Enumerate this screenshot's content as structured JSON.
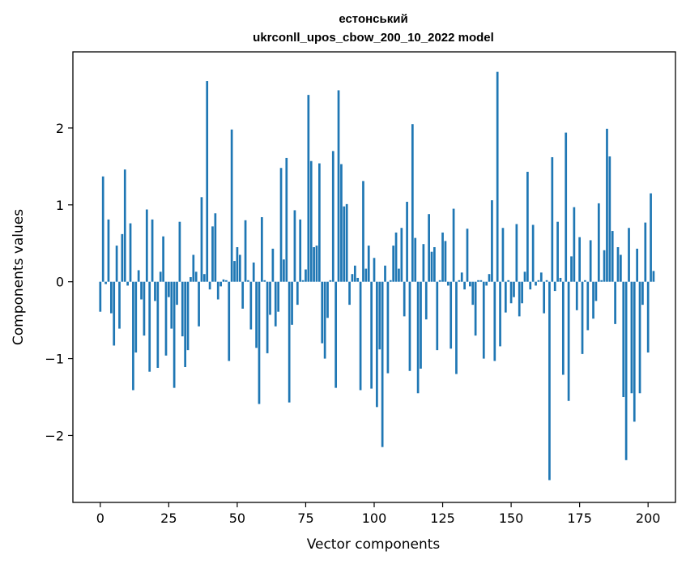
{
  "chart_data": {
    "type": "bar",
    "title_line1": "естонський",
    "title_line2": "ukrconll_upos_cbow_200_10_2022 model",
    "xlabel": "Vector components",
    "ylabel": "Components values",
    "xlim": [
      -10,
      210
    ],
    "ylim": [
      -2.87,
      2.99
    ],
    "xticks": [
      0,
      25,
      50,
      75,
      100,
      125,
      150,
      175,
      200
    ],
    "yticks": [
      -2,
      -1,
      0,
      1,
      2
    ],
    "ytick_labels": [
      "−2",
      "−1",
      "0",
      "1",
      "2"
    ],
    "bar_color": "#1f77b4",
    "grid": false,
    "values": [
      -0.39,
      1.37,
      -0.03,
      0.81,
      -0.41,
      -0.83,
      0.47,
      -0.61,
      0.62,
      1.46,
      -0.05,
      0.76,
      -1.41,
      -0.92,
      0.15,
      -0.23,
      -0.7,
      0.94,
      -1.17,
      0.81,
      -0.25,
      -1.12,
      0.13,
      0.59,
      -0.96,
      -0.2,
      -0.61,
      -1.38,
      -0.3,
      0.78,
      -0.71,
      -1.11,
      -0.89,
      0.06,
      0.35,
      0.13,
      -0.58,
      1.1,
      0.1,
      2.61,
      -0.1,
      0.72,
      0.89,
      -0.23,
      -0.06,
      0.03,
      0.02,
      -1.03,
      1.98,
      0.27,
      0.45,
      0.35,
      -0.35,
      0.8,
      0.02,
      -0.62,
      0.25,
      -0.86,
      -1.59,
      0.84,
      0.02,
      -0.93,
      -0.43,
      0.43,
      -0.58,
      -0.39,
      1.48,
      0.29,
      1.61,
      -1.57,
      -0.56,
      0.93,
      -0.3,
      0.81,
      0.02,
      0.16,
      2.43,
      1.57,
      0.45,
      0.47,
      1.54,
      -0.8,
      -1.0,
      -0.47,
      0.02,
      1.7,
      -1.38,
      2.49,
      1.53,
      0.98,
      1.01,
      -0.3,
      0.1,
      0.21,
      0.05,
      -1.41,
      1.31,
      0.17,
      0.47,
      -1.39,
      0.31,
      -1.63,
      -0.88,
      -2.15,
      0.21,
      -1.19,
      0.02,
      0.47,
      0.64,
      0.17,
      0.7,
      -0.45,
      1.04,
      -1.16,
      2.05,
      0.57,
      -1.45,
      -1.13,
      0.49,
      -0.49,
      0.88,
      0.39,
      0.45,
      -0.89,
      0.02,
      0.64,
      0.53,
      -0.05,
      -0.87,
      0.95,
      -1.2,
      0.02,
      0.12,
      -0.1,
      0.69,
      -0.06,
      -0.3,
      -0.7,
      0.02,
      0.02,
      -1.0,
      -0.05,
      0.1,
      1.06,
      -1.03,
      2.73,
      -0.84,
      0.7,
      -0.4,
      0.02,
      -0.28,
      -0.2,
      0.75,
      -0.45,
      -0.28,
      0.13,
      1.43,
      -0.1,
      0.74,
      -0.05,
      0.02,
      0.12,
      -0.41,
      0.02,
      -2.58,
      1.62,
      -0.12,
      0.78,
      0.05,
      -1.21,
      1.94,
      -1.55,
      0.33,
      0.97,
      -0.37,
      0.58,
      -0.94,
      0.02,
      -0.63,
      0.54,
      -0.48,
      -0.25,
      1.02,
      0.02,
      0.41,
      1.99,
      1.63,
      0.66,
      -0.55,
      0.45,
      0.35,
      -1.5,
      -2.32,
      0.7,
      -1.45,
      -1.82,
      0.43,
      -1.45,
      -0.3,
      0.77,
      -0.92,
      1.15,
      0.14
    ]
  }
}
